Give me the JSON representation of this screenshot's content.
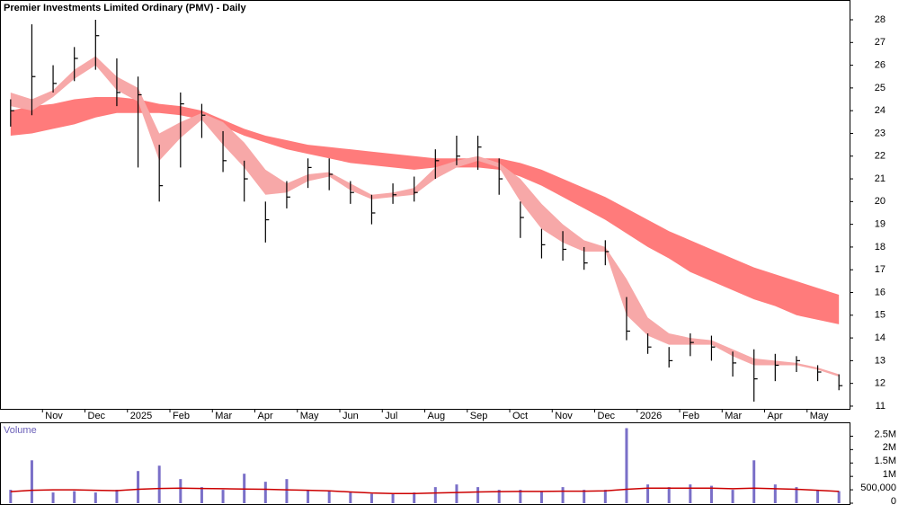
{
  "chart_data": [
    {
      "type": "hlc",
      "title": "Premier Investments Limited Ordinary (PMV) - Daily",
      "categories": [
        null,
        null,
        "Nov",
        null,
        "Dec",
        null,
        "2025",
        null,
        "Feb",
        null,
        "Mar",
        null,
        "Apr",
        null,
        "May",
        null,
        "Jun",
        null,
        "Jul",
        null,
        "Aug",
        null,
        "Sep",
        null,
        "Oct",
        null,
        "Nov",
        null,
        "Dec",
        null,
        "2026",
        null,
        "Feb",
        null,
        "Mar",
        null,
        "Apr",
        null,
        "May",
        null
      ],
      "high": [
        24.5,
        27.8,
        26,
        26.8,
        28,
        26.3,
        25.5,
        22.5,
        24.8,
        24.3,
        23.1,
        21.8,
        20,
        20.9,
        21.9,
        21.9,
        20.9,
        20.3,
        20.8,
        21.1,
        22.3,
        22.9,
        22.9,
        21.9,
        20,
        18.8,
        18.7,
        18,
        18.3,
        15.8,
        14.2,
        13.6,
        14.2,
        14.1,
        13.4,
        13.5,
        13.3,
        13.2,
        12.8,
        12.4
      ],
      "low": [
        23.3,
        23.8,
        24.8,
        25.3,
        25.8,
        24.2,
        21.5,
        20,
        21.5,
        22.8,
        21.3,
        20,
        18.2,
        19.7,
        20.6,
        20.5,
        19.9,
        19,
        19.9,
        20,
        21,
        21.6,
        21.4,
        20.3,
        18.4,
        17.5,
        17.4,
        17,
        17.2,
        13.9,
        13.3,
        12.7,
        13.2,
        13,
        12.3,
        11.2,
        12.1,
        12.5,
        12.1,
        11.7
      ],
      "close": [
        24,
        25.5,
        25.2,
        26.3,
        27.3,
        24.8,
        24.7,
        20.7,
        24.3,
        23.8,
        21.8,
        21,
        19.2,
        20.2,
        21.5,
        21.2,
        20.4,
        19.5,
        20.3,
        20.4,
        21.8,
        22,
        22.4,
        21,
        19.3,
        18.1,
        17.9,
        17.3,
        17.8,
        14.3,
        13.6,
        13,
        13.8,
        13.6,
        12.9,
        12.2,
        12.8,
        13,
        12.5,
        11.9
      ],
      "color": "#000000",
      "bands": [
        {
          "color": "#ff7b7b",
          "upper": [
            24,
            24.2,
            24.3,
            24.5,
            24.6,
            24.6,
            24.5,
            24.3,
            24.2,
            24,
            23.6,
            23.2,
            22.9,
            22.7,
            22.5,
            22.4,
            22.3,
            22.2,
            22.1,
            22,
            21.9,
            21.9,
            21.9,
            21.9,
            21.7,
            21.4,
            21,
            20.6,
            20.2,
            19.7,
            19.2,
            18.7,
            18.3,
            17.9,
            17.5,
            17.1,
            16.8,
            16.5,
            16.2,
            15.9
          ],
          "lower": [
            22.9,
            23,
            23.2,
            23.4,
            23.7,
            23.9,
            23.9,
            23.9,
            23.8,
            23.6,
            23.3,
            22.9,
            22.6,
            22.3,
            22.1,
            21.9,
            21.7,
            21.6,
            21.5,
            21.4,
            21.5,
            21.5,
            21.5,
            21.4,
            21.1,
            20.7,
            20.2,
            19.7,
            19.2,
            18.6,
            18,
            17.5,
            16.9,
            16.5,
            16.1,
            15.7,
            15.4,
            15,
            14.8,
            14.6
          ]
        },
        {
          "color": "#f7a8a8",
          "upper": [
            24.8,
            24.5,
            24.9,
            25.8,
            26.4,
            25.5,
            25,
            23,
            23.5,
            23.9,
            23.5,
            22.6,
            21.4,
            20.8,
            21.2,
            21.3,
            20.8,
            20.3,
            20.4,
            20.6,
            21.5,
            21.8,
            22,
            21.7,
            21,
            19.9,
            19,
            18.3,
            18,
            16.6,
            14.9,
            14.2,
            14,
            13.9,
            13.5,
            13.1,
            13,
            12.9,
            12.7,
            12.4
          ],
          "lower": [
            24.2,
            24,
            24.6,
            25.4,
            26,
            24.9,
            24.4,
            21.8,
            22.8,
            23.6,
            22.5,
            21.5,
            20.3,
            20.4,
            20.9,
            21.1,
            20.5,
            20.1,
            20.2,
            20.3,
            21,
            21.5,
            21.8,
            21.5,
            20,
            18.8,
            18.2,
            17.8,
            17.8,
            15,
            14.1,
            13.7,
            13.7,
            13.7,
            13.2,
            12.8,
            12.8,
            12.8,
            12.6,
            12.3
          ]
        }
      ],
      "ylim": [
        10.88,
        28.87
      ],
      "yticks": [
        11,
        12,
        13,
        14,
        15,
        16,
        17,
        18,
        19,
        20,
        21,
        22,
        23,
        24,
        25,
        26,
        27,
        28
      ]
    },
    {
      "type": "bar",
      "title": "Volume",
      "color": "#7a6fc8",
      "values": [
        500000,
        1600000,
        400000,
        450000,
        400000,
        500000,
        1200000,
        1400000,
        900000,
        600000,
        500000,
        1100000,
        800000,
        900000,
        500000,
        450000,
        400000,
        350000,
        350000,
        400000,
        600000,
        700000,
        600000,
        500000,
        500000,
        450000,
        600000,
        500000,
        500000,
        2800000,
        700000,
        600000,
        700000,
        650000,
        500000,
        1600000,
        700000,
        600000,
        500000,
        450000
      ],
      "average": {
        "color": "#cc0000",
        "values": [
          430000,
          480000,
          500000,
          500000,
          480000,
          470000,
          520000,
          550000,
          560000,
          550000,
          540000,
          530000,
          520000,
          500000,
          480000,
          460000,
          420000,
          380000,
          360000,
          360000,
          380000,
          400000,
          420000,
          430000,
          440000,
          440000,
          450000,
          450000,
          460000,
          520000,
          560000,
          560000,
          560000,
          560000,
          540000,
          560000,
          540000,
          520000,
          480000,
          440000
        ]
      },
      "ylim": [
        0,
        2950000
      ],
      "yticks": [
        0,
        {
          "value": 500000,
          "label": "500,000"
        },
        {
          "value": 1000000,
          "label": "1M"
        },
        {
          "value": 1500000,
          "label": "1.5M"
        },
        {
          "value": 2000000,
          "label": "2M"
        },
        {
          "value": 2500000,
          "label": "2.5M"
        }
      ]
    }
  ]
}
